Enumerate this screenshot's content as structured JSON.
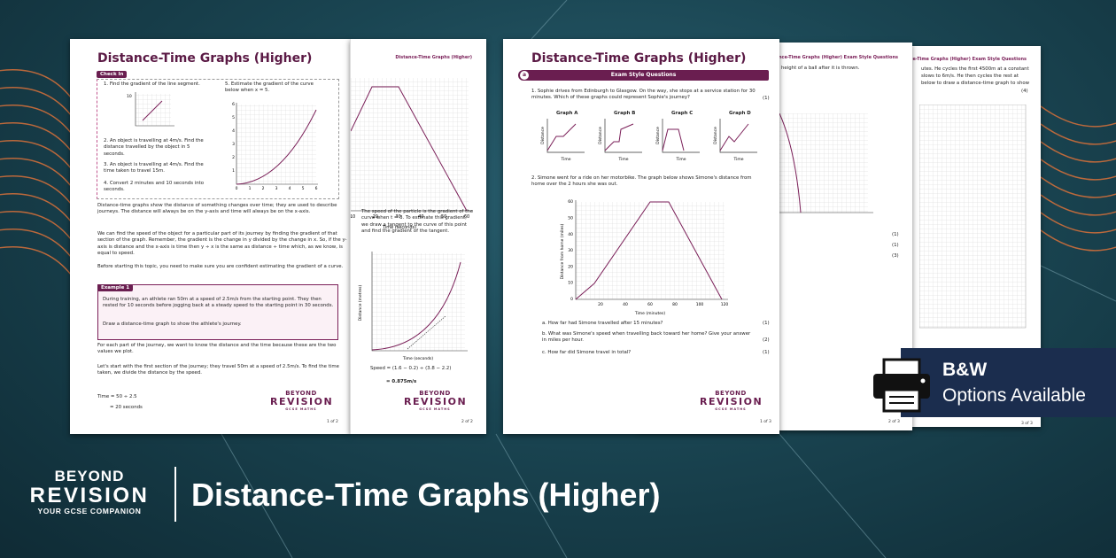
{
  "banner": {
    "logo_top": "BEYOND",
    "logo_main": "REVISION",
    "logo_tagline": "YOUR GCSE COMPANION",
    "title": "Distance-Time Graphs (Higher)"
  },
  "badge": {
    "title": "B&W",
    "subtitle": "Options Available"
  },
  "footer_logo": {
    "top": "BEYOND",
    "main": "REVISION",
    "sub": "GCSE MATHS"
  },
  "sheet_1": {
    "title": "Distance-Time Graphs (Higher)",
    "check_in": "Check In",
    "questions": [
      "1. Find the gradient of the line segment.",
      "2. An object is travelling at 4m/s. Find the distance travelled by the object in 5 seconds.",
      "3. An object is travelling at 4m/s. Find the time taken to travel 15m.",
      "4. Convert 2 minutes and 10 seconds into seconds.",
      "5. Estimate the gradient of the curve below when x = 5."
    ],
    "q1_tick": "10",
    "q5_xticks": [
      "0",
      "1",
      "2",
      "3",
      "4",
      "5",
      "6"
    ],
    "q5_yticks": [
      "1",
      "2",
      "3",
      "4",
      "5",
      "6"
    ],
    "paragraphs": [
      "Distance-time graphs show the distance of something changes over time; they are used to describe journeys. The distance will always be on the y-axis and time will always be on the x-axis.",
      "We can find the speed of the object for a particular part of its journey by finding the gradient of that section of the graph. Remember, the gradient is the change in y divided by the change in x. So, if the y-axis is distance and the x-axis is time then y ÷ x is the same as distance ÷ time which, as we know, is equal to speed.",
      "Before starting this topic, you need to make sure you are confident estimating the gradient of a curve."
    ],
    "example": {
      "tag": "Example 1",
      "lines": [
        "During training, an athlete ran 50m at a speed of 2.5m/s from the starting point. They then rested for 10 seconds before jogging back at a steady speed to the starting point in 30 seconds.",
        "Draw a distance-time graph to show the athlete's journey."
      ]
    },
    "body": [
      "For each part of the journey, we want to know the distance and the time because these are the two values we plot.",
      "Let's start with the first section of the journey; they travel 50m at a speed of 2.5m/s. To find the time taken, we divide the distance by the speed."
    ],
    "working": [
      "Time = 50 ÷ 2.5",
      "= 20 seconds"
    ],
    "page": "1 of 2"
  },
  "sheet_2": {
    "header": "Distance-Time Graphs (Higher)",
    "graph_xticks": [
      "10",
      "20",
      "30",
      "40",
      "50",
      "60"
    ],
    "graph_xlabel": "Time (seconds)",
    "paragraph": "The speed of the particle is the gradient of the curve when t = 3. To estimate this gradient, we draw a tangent to the curve of this point and find the gradient of the tangent.",
    "curve_ylabel": "Distance (metres)",
    "curve_xlabel": "Time (seconds)",
    "working": [
      "Speed = (1.6 − 0.2) ÷ (3.8 − 2.2)",
      "= 0.875m/s"
    ],
    "page": "2 of 2"
  },
  "sheet_3": {
    "title": "Distance-Time Graphs (Higher)",
    "band": "Exam Style Questions",
    "band_letter": "a",
    "q1": "1. Sophie drives from Edinburgh to Glasgow. On the way, she stops at a service station for 30 minutes. Which of these graphs could represent Sophie's journey?",
    "q1_mark": "(1)",
    "graphs": [
      "Graph A",
      "Graph B",
      "Graph C",
      "Graph D"
    ],
    "graph_ylabel": "Distance",
    "graph_xlabel": "Time",
    "q2": "2. Simone went for a ride on her motorbike. The graph below shows Simone's distance from home over the 2 hours she was out.",
    "q2_yticks": [
      "0",
      "10",
      "20",
      "30",
      "40",
      "50",
      "60"
    ],
    "q2_xticks": [
      "20",
      "40",
      "60",
      "80",
      "100",
      "120"
    ],
    "q2_ylabel": "Distance from home (miles)",
    "q2_xlabel": "Time (minutes)",
    "parts": [
      {
        "text": "a. How far had Simone travelled after 15 minutes?",
        "mark": "(1)"
      },
      {
        "text": "b. What was Simone's speed when travelling back toward her home? Give your answer in miles per hour.",
        "mark": "(2)"
      },
      {
        "text": "c. How far did Simone travel in total?",
        "mark": "(1)"
      }
    ],
    "page": "1 of 3"
  },
  "sheet_4": {
    "header": "Distance-Time Graphs (Higher) Exam Style Questions",
    "line": "height of a ball after it is thrown.",
    "marks": [
      "(1)",
      "(1)",
      "(3)"
    ],
    "page": "2 of 3"
  },
  "sheet_5": {
    "header": "Distance-Time Graphs (Higher) Exam Style Questions",
    "lines": [
      "utes. He cycles the first 4500m at a constant",
      "slows to 6m/s. He then cycles the rest at",
      "below to draw a distance-time graph to show"
    ],
    "mark": "(4)",
    "page": "3 of 3"
  }
}
